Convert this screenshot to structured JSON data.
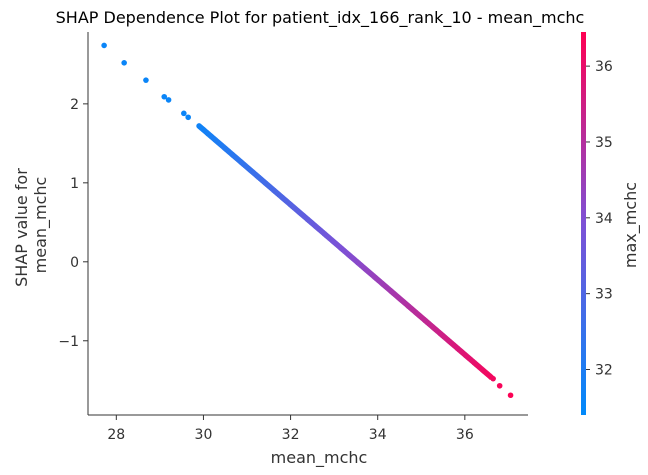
{
  "chart_data": {
    "type": "scatter",
    "title": "SHAP Dependence Plot for patient_idx_166_rank_10 - mean_mchc",
    "xlabel": "mean_mchc",
    "ylabel": [
      "SHAP value for",
      "mean_mchc"
    ],
    "xlim": [
      27.35,
      37.45
    ],
    "ylim": [
      -1.94,
      2.91
    ],
    "xticks": [
      28,
      30,
      32,
      34,
      36
    ],
    "xtick_labels": [
      "28",
      "30",
      "32",
      "34",
      "36"
    ],
    "yticks": [
      -1,
      0,
      1,
      2
    ],
    "ytick_labels": [
      "−1",
      "0",
      "1",
      "2"
    ],
    "grid": false,
    "colorbar": {
      "label": "max_mchc",
      "range": [
        31.4,
        36.45
      ],
      "ticks": [
        32,
        33,
        34,
        35,
        36
      ],
      "tick_labels": [
        "32",
        "33",
        "34",
        "35",
        "36"
      ],
      "colors": [
        "#008afb",
        "#ff0052"
      ]
    },
    "series": [
      {
        "points": [
          {
            "x": 27.72,
            "y": 2.74,
            "c": 31.6
          },
          {
            "x": 28.18,
            "y": 2.52,
            "c": 31.6
          },
          {
            "x": 28.68,
            "y": 2.3,
            "c": 31.6
          },
          {
            "x": 29.1,
            "y": 2.09,
            "c": 31.6
          },
          {
            "x": 29.2,
            "y": 2.05,
            "c": 31.6
          },
          {
            "x": 29.55,
            "y": 1.88,
            "c": 31.6
          },
          {
            "x": 29.65,
            "y": 1.83,
            "c": 31.6
          },
          {
            "x": 36.65,
            "y": -1.48,
            "c": 36.2
          },
          {
            "x": 36.8,
            "y": -1.57,
            "c": 36.3
          },
          {
            "x": 37.05,
            "y": -1.69,
            "c": 36.4
          }
        ],
        "dense_range": {
          "x": [
            29.9,
            36.6
          ],
          "y": [
            1.72,
            -1.46
          ],
          "c": [
            31.7,
            36.2
          ],
          "count": 330
        }
      }
    ]
  }
}
